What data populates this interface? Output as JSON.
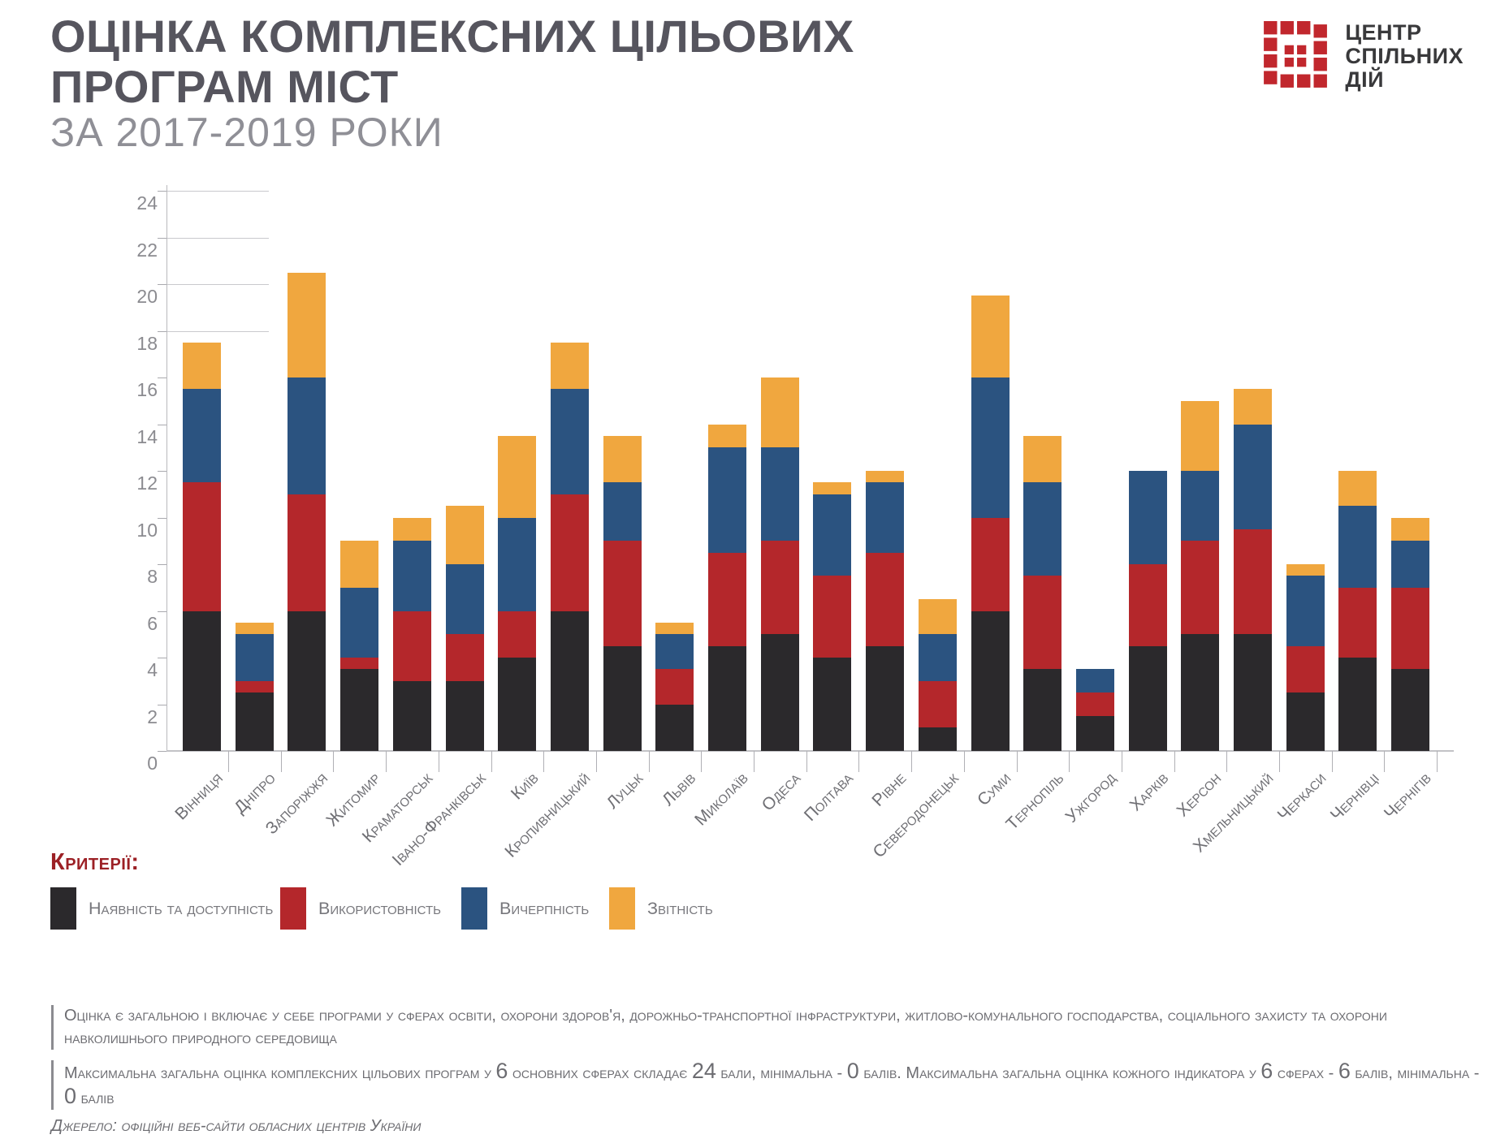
{
  "header": {
    "title_line1": "ОЦІНКА КОМПЛЕКСНИХ ЦІЛЬОВИХ",
    "title_line2": "ПРОГРАМ МІСТ",
    "subtitle": "ЗА 2017-2019 РОКИ"
  },
  "logo": {
    "name": "Центр Спільних Дій",
    "lines": [
      "ЦЕНТР",
      "СПІЛЬНИХ",
      "ДІЙ"
    ],
    "icon_color": "#c1272d",
    "text_color": "#39393b"
  },
  "chart_data": {
    "type": "bar",
    "stacked": true,
    "title": "Оцінка комплексних цільових програм міст за 2017-2019 роки",
    "ylim": [
      0,
      24
    ],
    "ytick_step": 2,
    "grid": "top-stubs-only",
    "legend_position": "bottom",
    "categories": [
      "Вінниця",
      "Дніпро",
      "Запоріжжя",
      "Житомир",
      "Краматорськ",
      "Івано-Франківськ",
      "Київ",
      "Кропивницький",
      "Луцьк",
      "Львів",
      "Миколаїв",
      "Одеса",
      "Полтава",
      "Рівне",
      "Северодонецьк",
      "Суми",
      "Тернопіль",
      "Ужгород",
      "Харків",
      "Херсон",
      "Хмельницький",
      "Черкаси",
      "Чернівці",
      "Чернігів"
    ],
    "series": [
      {
        "name": "Наявність та доступність",
        "color": "#2b292c",
        "values": [
          6,
          2.5,
          6,
          3.5,
          3,
          3,
          4,
          6,
          4.5,
          2,
          4.5,
          5,
          4,
          4.5,
          1,
          6,
          3.5,
          1.5,
          4.5,
          5,
          5,
          2.5,
          4,
          3.5
        ]
      },
      {
        "name": "Використовність",
        "color": "#b4272b",
        "values": [
          5.5,
          0.5,
          5,
          0.5,
          3,
          2,
          2,
          5,
          4.5,
          1.5,
          4,
          4,
          3.5,
          4,
          2,
          4,
          4,
          1,
          3.5,
          4,
          4.5,
          2,
          3,
          3.5
        ]
      },
      {
        "name": "Вичерпність",
        "color": "#2b5380",
        "values": [
          4,
          2,
          5,
          3,
          3,
          3,
          4,
          4.5,
          2.5,
          1.5,
          4.5,
          4,
          3.5,
          3,
          2,
          6,
          4,
          1,
          4,
          3,
          4.5,
          3,
          3.5,
          2
        ]
      },
      {
        "name": "Звітність",
        "color": "#f0a73f",
        "values": [
          2,
          0.5,
          4.5,
          2,
          1,
          2.5,
          3.5,
          2,
          2,
          0.5,
          1,
          3,
          0.5,
          0.5,
          1.5,
          3.5,
          2,
          0,
          0,
          3,
          1.5,
          0.5,
          1.5,
          1
        ]
      }
    ],
    "totals": [
      17.5,
      5.5,
      20.5,
      9,
      10,
      10.5,
      13.5,
      17.5,
      13.5,
      5.5,
      14,
      16,
      11.5,
      12,
      6.5,
      19.5,
      13.5,
      3.5,
      12,
      15,
      15.5,
      8,
      12,
      10
    ]
  },
  "legend": {
    "title": "Критерії:",
    "items": [
      {
        "label": "Наявність та доступність",
        "color": "#2b292c",
        "x": 62
      },
      {
        "label": "Використовність",
        "color": "#b4272b",
        "x": 345
      },
      {
        "label": "Вичерпність",
        "color": "#2b5380",
        "x": 568
      },
      {
        "label": "Звітність",
        "color": "#f0a73f",
        "x": 750
      }
    ]
  },
  "footnotes": {
    "note1": "Оцінка є загальною і включає у себе програми у сферах освіти, охорони здоров'я, дорожньо-транспортної інфраструктури, житлово-комунального господарства, соціального захисту та охорони навколишнього природного середовища",
    "note2": "Максимальна загальна оцінка комплексних цільових програм у 6 основних сферах складає 24 бали, мінімальна - 0 балів. Максимальна загальна оцінка кожного індикатора у 6 сферах - 6 балів, мінімальна - 0 балів",
    "source": "Джерело: офіційні веб-сайти обласних центрів України"
  }
}
